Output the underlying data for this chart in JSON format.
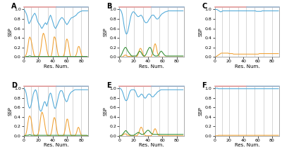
{
  "n_residues": 90,
  "x_ticks": [
    0,
    20,
    40,
    60,
    80
  ],
  "x_label": "Res. Num.",
  "y_label": "SSP",
  "y_ticks": [
    0.0,
    0.2,
    0.4,
    0.6,
    0.8,
    1.0
  ],
  "panel_labels": [
    "A",
    "B",
    "C",
    "D",
    "E",
    "F"
  ],
  "blue_color": "#4da8d8",
  "orange_color": "#f0a030",
  "green_color": "#2e8b2e",
  "background_color": "#ffffff",
  "vline_color": "#d0d0d0",
  "vline_positions": [
    10,
    20,
    33,
    44,
    56,
    68,
    80
  ],
  "header_pink": "#e8a0a0",
  "header_blue": "#a0b8d0",
  "figsize": [
    4.0,
    2.24
  ],
  "dpi": 100,
  "panel_A_blue": [
    1.0,
    0.98,
    0.95,
    0.92,
    0.88,
    0.82,
    0.75,
    0.7,
    0.72,
    0.75,
    0.78,
    0.82,
    0.85,
    0.88,
    0.9,
    0.92,
    0.9,
    0.86,
    0.8,
    0.75,
    0.72,
    0.7,
    0.68,
    0.65,
    0.62,
    0.6,
    0.62,
    0.65,
    0.68,
    0.7,
    0.72,
    0.7,
    0.68,
    0.72,
    0.76,
    0.8,
    0.85,
    0.88,
    0.85,
    0.8,
    0.75,
    0.7,
    0.65,
    0.62,
    0.6,
    0.62,
    0.65,
    0.68,
    0.72,
    0.75,
    0.78,
    0.8,
    0.82,
    0.83,
    0.82,
    0.8,
    0.78,
    0.75,
    0.72,
    0.7,
    0.68,
    0.7,
    0.72,
    0.75,
    0.78,
    0.8,
    0.82,
    0.83,
    0.83,
    0.84,
    0.85,
    0.86,
    0.87,
    0.88,
    0.9,
    0.92,
    0.93,
    0.94,
    0.95,
    0.96,
    0.96,
    0.97,
    0.97,
    0.97,
    0.97,
    0.97,
    0.97,
    0.97,
    0.97,
    0.97
  ],
  "panel_A_orange": [
    0.0,
    0.0,
    0.02,
    0.05,
    0.1,
    0.18,
    0.28,
    0.38,
    0.42,
    0.4,
    0.35,
    0.28,
    0.2,
    0.12,
    0.05,
    0.02,
    0.01,
    0.0,
    0.0,
    0.0,
    0.01,
    0.02,
    0.05,
    0.12,
    0.22,
    0.35,
    0.45,
    0.5,
    0.48,
    0.42,
    0.35,
    0.25,
    0.15,
    0.08,
    0.03,
    0.01,
    0.0,
    0.0,
    0.02,
    0.08,
    0.18,
    0.32,
    0.42,
    0.42,
    0.38,
    0.3,
    0.2,
    0.1,
    0.04,
    0.01,
    0.0,
    0.0,
    0.0,
    0.0,
    0.0,
    0.02,
    0.05,
    0.12,
    0.22,
    0.35,
    0.38,
    0.35,
    0.28,
    0.18,
    0.08,
    0.02,
    0.0,
    0.0,
    0.0,
    0.0,
    0.0,
    0.0,
    0.02,
    0.05,
    0.1,
    0.18,
    0.22,
    0.22,
    0.18,
    0.12,
    0.06,
    0.02,
    0.0,
    0.0,
    0.0,
    0.0,
    0.0,
    0.0,
    0.0,
    0.0
  ],
  "panel_A_green": [
    0.0,
    0.0,
    0.0,
    0.01,
    0.01,
    0.01,
    0.01,
    0.02,
    0.02,
    0.02,
    0.01,
    0.01,
    0.01,
    0.01,
    0.01,
    0.01,
    0.01,
    0.01,
    0.01,
    0.01,
    0.01,
    0.01,
    0.01,
    0.01,
    0.01,
    0.01,
    0.01,
    0.01,
    0.01,
    0.01,
    0.01,
    0.01,
    0.01,
    0.01,
    0.01,
    0.01,
    0.01,
    0.01,
    0.01,
    0.01,
    0.01,
    0.01,
    0.01,
    0.01,
    0.01,
    0.01,
    0.01,
    0.01,
    0.01,
    0.01,
    0.01,
    0.01,
    0.01,
    0.01,
    0.01,
    0.01,
    0.01,
    0.01,
    0.01,
    0.01,
    0.01,
    0.01,
    0.01,
    0.01,
    0.01,
    0.01,
    0.01,
    0.01,
    0.01,
    0.01,
    0.01,
    0.01,
    0.01,
    0.01,
    0.01,
    0.01,
    0.01,
    0.01,
    0.01,
    0.01,
    0.01,
    0.01,
    0.01,
    0.01,
    0.01,
    0.01,
    0.01,
    0.01,
    0.01,
    0.0
  ],
  "panel_B_blue": [
    1.0,
    1.0,
    0.98,
    0.95,
    0.9,
    0.82,
    0.72,
    0.62,
    0.55,
    0.5,
    0.48,
    0.5,
    0.55,
    0.62,
    0.7,
    0.78,
    0.85,
    0.9,
    0.93,
    0.95,
    0.95,
    0.94,
    0.92,
    0.9,
    0.88,
    0.86,
    0.85,
    0.85,
    0.86,
    0.87,
    0.88,
    0.87,
    0.85,
    0.82,
    0.78,
    0.75,
    0.73,
    0.72,
    0.72,
    0.73,
    0.75,
    0.78,
    0.8,
    0.82,
    0.85,
    0.87,
    0.88,
    0.88,
    0.88,
    0.86,
    0.84,
    0.82,
    0.8,
    0.8,
    0.8,
    0.82,
    0.84,
    0.86,
    0.88,
    0.9,
    0.91,
    0.92,
    0.93,
    0.94,
    0.95,
    0.95,
    0.96,
    0.96,
    0.97,
    0.97,
    0.97,
    0.97,
    0.97,
    0.97,
    0.97,
    0.97,
    0.97,
    0.97,
    0.97,
    0.97,
    0.97,
    0.97,
    0.97,
    0.97,
    0.97,
    0.97,
    0.97,
    0.97,
    0.97,
    0.97
  ],
  "panel_B_orange": [
    0.0,
    0.0,
    0.0,
    0.0,
    0.0,
    0.01,
    0.02,
    0.03,
    0.04,
    0.04,
    0.03,
    0.02,
    0.01,
    0.01,
    0.01,
    0.01,
    0.02,
    0.02,
    0.01,
    0.01,
    0.0,
    0.0,
    0.0,
    0.0,
    0.01,
    0.02,
    0.05,
    0.1,
    0.15,
    0.18,
    0.18,
    0.15,
    0.1,
    0.06,
    0.03,
    0.01,
    0.0,
    0.0,
    0.0,
    0.0,
    0.0,
    0.0,
    0.0,
    0.0,
    0.0,
    0.02,
    0.05,
    0.1,
    0.18,
    0.25,
    0.28,
    0.25,
    0.18,
    0.1,
    0.05,
    0.02,
    0.0,
    0.0,
    0.0,
    0.0,
    0.0,
    0.0,
    0.0,
    0.0,
    0.0,
    0.0,
    0.0,
    0.0,
    0.0,
    0.0,
    0.0,
    0.0,
    0.0,
    0.0,
    0.0,
    0.0,
    0.0,
    0.0,
    0.0,
    0.0,
    0.0,
    0.0,
    0.0,
    0.0,
    0.0,
    0.0,
    0.0,
    0.0,
    0.0,
    0.0
  ],
  "panel_B_green": [
    0.0,
    0.0,
    0.02,
    0.05,
    0.08,
    0.12,
    0.15,
    0.18,
    0.2,
    0.2,
    0.18,
    0.15,
    0.12,
    0.1,
    0.08,
    0.06,
    0.04,
    0.02,
    0.02,
    0.02,
    0.02,
    0.02,
    0.02,
    0.02,
    0.03,
    0.05,
    0.08,
    0.1,
    0.12,
    0.12,
    0.1,
    0.08,
    0.05,
    0.03,
    0.02,
    0.02,
    0.03,
    0.05,
    0.08,
    0.12,
    0.15,
    0.18,
    0.2,
    0.2,
    0.18,
    0.15,
    0.1,
    0.06,
    0.04,
    0.03,
    0.02,
    0.02,
    0.02,
    0.02,
    0.03,
    0.05,
    0.08,
    0.1,
    0.12,
    0.12,
    0.1,
    0.08,
    0.06,
    0.04,
    0.03,
    0.02,
    0.02,
    0.02,
    0.02,
    0.02,
    0.02,
    0.02,
    0.02,
    0.02,
    0.02,
    0.02,
    0.02,
    0.02,
    0.02,
    0.02,
    0.02,
    0.02,
    0.02,
    0.02,
    0.02,
    0.02,
    0.02,
    0.02,
    0.02,
    0.02
  ],
  "panel_C_blue": [
    1.0,
    1.0,
    1.0,
    1.0,
    0.99,
    0.98,
    0.97,
    0.96,
    0.95,
    0.95,
    0.96,
    0.97,
    0.97,
    0.97,
    0.97,
    0.97,
    0.97,
    0.97,
    0.97,
    0.97,
    0.97,
    0.97,
    0.97,
    0.97,
    0.97,
    0.97,
    0.97,
    0.97,
    0.97,
    0.97,
    0.97,
    0.97,
    0.97,
    0.97,
    0.97,
    0.97,
    0.97,
    0.97,
    0.97,
    0.97,
    0.97,
    0.97,
    0.97,
    0.97,
    0.97,
    0.97,
    0.97,
    0.97,
    0.97,
    0.97,
    0.97,
    0.97,
    0.97,
    0.97,
    0.97,
    0.97,
    0.97,
    0.97,
    0.96,
    0.96,
    0.96,
    0.96,
    0.96,
    0.96,
    0.96,
    0.96,
    0.97,
    0.97,
    0.97,
    0.97,
    0.97,
    0.97,
    0.97,
    0.97,
    0.97,
    0.97,
    0.97,
    0.97,
    0.97,
    0.97,
    0.97,
    0.97,
    0.97,
    0.97,
    0.97,
    0.97,
    0.97,
    0.97,
    0.97,
    0.97
  ],
  "panel_C_orange": [
    0.0,
    0.0,
    0.01,
    0.02,
    0.03,
    0.04,
    0.05,
    0.06,
    0.07,
    0.08,
    0.08,
    0.08,
    0.08,
    0.08,
    0.08,
    0.08,
    0.08,
    0.08,
    0.08,
    0.08,
    0.07,
    0.07,
    0.07,
    0.07,
    0.07,
    0.07,
    0.06,
    0.06,
    0.06,
    0.06,
    0.06,
    0.06,
    0.06,
    0.06,
    0.06,
    0.06,
    0.06,
    0.06,
    0.06,
    0.06,
    0.06,
    0.06,
    0.06,
    0.06,
    0.06,
    0.06,
    0.06,
    0.06,
    0.06,
    0.06,
    0.06,
    0.06,
    0.06,
    0.06,
    0.06,
    0.06,
    0.06,
    0.06,
    0.06,
    0.06,
    0.06,
    0.06,
    0.07,
    0.07,
    0.07,
    0.07,
    0.07,
    0.07,
    0.07,
    0.07,
    0.07,
    0.07,
    0.07,
    0.07,
    0.07,
    0.07,
    0.07,
    0.07,
    0.07,
    0.07,
    0.07,
    0.07,
    0.07,
    0.07,
    0.07,
    0.07,
    0.07,
    0.07,
    0.07,
    0.07
  ],
  "panel_C_green": [
    0.0,
    0.0,
    0.0,
    0.0,
    0.0,
    0.0,
    0.0,
    0.0,
    0.0,
    0.0,
    0.0,
    0.0,
    0.0,
    0.0,
    0.0,
    0.0,
    0.0,
    0.0,
    0.0,
    0.0,
    0.0,
    0.0,
    0.0,
    0.0,
    0.0,
    0.0,
    0.0,
    0.0,
    0.0,
    0.0,
    0.0,
    0.0,
    0.0,
    0.0,
    0.0,
    0.0,
    0.0,
    0.0,
    0.0,
    0.0,
    0.0,
    0.0,
    0.0,
    0.0,
    0.0,
    0.0,
    0.0,
    0.0,
    0.0,
    0.0,
    0.0,
    0.0,
    0.0,
    0.0,
    0.0,
    0.0,
    0.0,
    0.0,
    0.0,
    0.0,
    0.0,
    0.0,
    0.0,
    0.0,
    0.0,
    0.0,
    0.0,
    0.0,
    0.0,
    0.0,
    0.0,
    0.0,
    0.0,
    0.0,
    0.0,
    0.0,
    0.0,
    0.0,
    0.0,
    0.0,
    0.0,
    0.0,
    0.0,
    0.0,
    0.0,
    0.0,
    0.0,
    0.0,
    0.0,
    0.0
  ],
  "panel_D_blue": [
    1.0,
    0.98,
    0.95,
    0.9,
    0.82,
    0.72,
    0.65,
    0.6,
    0.58,
    0.6,
    0.65,
    0.72,
    0.8,
    0.88,
    0.92,
    0.95,
    0.97,
    0.95,
    0.9,
    0.82,
    0.72,
    0.62,
    0.55,
    0.52,
    0.52,
    0.55,
    0.6,
    0.65,
    0.7,
    0.72,
    0.7,
    0.65,
    0.62,
    0.68,
    0.75,
    0.82,
    0.88,
    0.9,
    0.88,
    0.82,
    0.75,
    0.68,
    0.62,
    0.58,
    0.58,
    0.62,
    0.68,
    0.75,
    0.82,
    0.88,
    0.92,
    0.95,
    0.95,
    0.95,
    0.92,
    0.88,
    0.82,
    0.78,
    0.75,
    0.72,
    0.72,
    0.75,
    0.8,
    0.85,
    0.88,
    0.9,
    0.92,
    0.93,
    0.94,
    0.95,
    0.96,
    0.97,
    0.97,
    0.97,
    0.97,
    0.97,
    0.97,
    0.97,
    0.97,
    0.97,
    0.97,
    0.97,
    0.97,
    0.97,
    0.97,
    0.97,
    0.97,
    0.97,
    0.97,
    0.97
  ],
  "panel_D_orange": [
    0.0,
    0.0,
    0.02,
    0.05,
    0.12,
    0.22,
    0.32,
    0.4,
    0.42,
    0.4,
    0.35,
    0.25,
    0.15,
    0.05,
    0.02,
    0.0,
    0.0,
    0.0,
    0.0,
    0.02,
    0.05,
    0.12,
    0.22,
    0.35,
    0.45,
    0.5,
    0.48,
    0.42,
    0.35,
    0.25,
    0.15,
    0.08,
    0.03,
    0.01,
    0.0,
    0.0,
    0.0,
    0.01,
    0.05,
    0.12,
    0.22,
    0.32,
    0.38,
    0.38,
    0.32,
    0.22,
    0.12,
    0.05,
    0.01,
    0.0,
    0.0,
    0.0,
    0.0,
    0.0,
    0.0,
    0.01,
    0.04,
    0.1,
    0.18,
    0.28,
    0.35,
    0.35,
    0.28,
    0.18,
    0.1,
    0.04,
    0.01,
    0.0,
    0.0,
    0.0,
    0.0,
    0.0,
    0.02,
    0.05,
    0.1,
    0.16,
    0.18,
    0.16,
    0.1,
    0.05,
    0.02,
    0.0,
    0.0,
    0.0,
    0.0,
    0.0,
    0.0,
    0.0,
    0.0,
    0.0
  ],
  "panel_D_green": [
    0.0,
    0.0,
    0.0,
    0.01,
    0.01,
    0.01,
    0.01,
    0.02,
    0.02,
    0.02,
    0.01,
    0.01,
    0.01,
    0.01,
    0.01,
    0.01,
    0.01,
    0.01,
    0.01,
    0.01,
    0.01,
    0.01,
    0.01,
    0.01,
    0.01,
    0.01,
    0.01,
    0.01,
    0.01,
    0.01,
    0.01,
    0.01,
    0.01,
    0.01,
    0.01,
    0.01,
    0.01,
    0.01,
    0.01,
    0.01,
    0.01,
    0.01,
    0.01,
    0.01,
    0.01,
    0.01,
    0.01,
    0.01,
    0.01,
    0.01,
    0.01,
    0.01,
    0.01,
    0.01,
    0.01,
    0.01,
    0.01,
    0.01,
    0.01,
    0.01,
    0.01,
    0.01,
    0.01,
    0.01,
    0.01,
    0.01,
    0.01,
    0.01,
    0.01,
    0.01,
    0.01,
    0.01,
    0.01,
    0.01,
    0.01,
    0.01,
    0.01,
    0.01,
    0.01,
    0.01,
    0.01,
    0.01,
    0.01,
    0.01,
    0.01,
    0.01,
    0.01,
    0.01,
    0.01,
    0.0
  ],
  "panel_E_blue": [
    1.0,
    1.0,
    0.99,
    0.97,
    0.94,
    0.9,
    0.85,
    0.8,
    0.76,
    0.74,
    0.74,
    0.76,
    0.8,
    0.85,
    0.9,
    0.94,
    0.96,
    0.97,
    0.97,
    0.97,
    0.97,
    0.97,
    0.95,
    0.92,
    0.88,
    0.84,
    0.82,
    0.82,
    0.83,
    0.85,
    0.87,
    0.88,
    0.87,
    0.85,
    0.82,
    0.8,
    0.79,
    0.8,
    0.82,
    0.85,
    0.87,
    0.88,
    0.88,
    0.87,
    0.85,
    0.83,
    0.82,
    0.82,
    0.83,
    0.85,
    0.87,
    0.88,
    0.9,
    0.92,
    0.93,
    0.94,
    0.95,
    0.96,
    0.97,
    0.97,
    0.97,
    0.97,
    0.97,
    0.97,
    0.97,
    0.97,
    0.97,
    0.97,
    0.97,
    0.97,
    0.97,
    0.97,
    0.97,
    0.97,
    0.97,
    0.97,
    0.97,
    0.97,
    0.97,
    0.97,
    0.97,
    0.97,
    0.97,
    0.97,
    0.97,
    0.97,
    0.97,
    0.97,
    0.97,
    0.97
  ],
  "panel_E_orange": [
    0.0,
    0.0,
    0.0,
    0.0,
    0.01,
    0.02,
    0.03,
    0.04,
    0.04,
    0.04,
    0.03,
    0.02,
    0.01,
    0.01,
    0.01,
    0.0,
    0.0,
    0.0,
    0.0,
    0.0,
    0.0,
    0.0,
    0.0,
    0.0,
    0.0,
    0.01,
    0.03,
    0.06,
    0.1,
    0.15,
    0.18,
    0.18,
    0.15,
    0.1,
    0.06,
    0.02,
    0.01,
    0.0,
    0.0,
    0.0,
    0.0,
    0.0,
    0.0,
    0.0,
    0.0,
    0.01,
    0.03,
    0.06,
    0.1,
    0.14,
    0.15,
    0.13,
    0.09,
    0.05,
    0.02,
    0.01,
    0.0,
    0.0,
    0.0,
    0.0,
    0.0,
    0.0,
    0.0,
    0.0,
    0.0,
    0.0,
    0.0,
    0.0,
    0.0,
    0.0,
    0.0,
    0.0,
    0.0,
    0.0,
    0.0,
    0.0,
    0.0,
    0.0,
    0.0,
    0.0,
    0.0,
    0.0,
    0.0,
    0.0,
    0.0,
    0.0,
    0.0,
    0.0,
    0.0,
    0.0
  ],
  "panel_E_green": [
    0.0,
    0.0,
    0.0,
    0.01,
    0.02,
    0.04,
    0.06,
    0.08,
    0.1,
    0.11,
    0.1,
    0.08,
    0.06,
    0.04,
    0.03,
    0.02,
    0.01,
    0.01,
    0.01,
    0.01,
    0.01,
    0.02,
    0.03,
    0.04,
    0.05,
    0.06,
    0.07,
    0.07,
    0.06,
    0.05,
    0.04,
    0.03,
    0.03,
    0.03,
    0.04,
    0.05,
    0.06,
    0.08,
    0.1,
    0.11,
    0.12,
    0.11,
    0.1,
    0.08,
    0.06,
    0.05,
    0.04,
    0.03,
    0.03,
    0.03,
    0.03,
    0.03,
    0.03,
    0.03,
    0.03,
    0.03,
    0.03,
    0.03,
    0.03,
    0.03,
    0.03,
    0.03,
    0.03,
    0.03,
    0.03,
    0.03,
    0.03,
    0.03,
    0.03,
    0.03,
    0.03,
    0.03,
    0.03,
    0.03,
    0.03,
    0.03,
    0.03,
    0.03,
    0.03,
    0.03,
    0.03,
    0.03,
    0.03,
    0.03,
    0.03,
    0.03,
    0.03,
    0.03,
    0.03,
    0.03
  ],
  "panel_F_blue": [
    1.0,
    1.0,
    1.0,
    1.0,
    1.0,
    0.99,
    0.99,
    0.99,
    0.99,
    0.99,
    0.99,
    0.99,
    0.99,
    0.99,
    0.99,
    0.99,
    0.99,
    0.99,
    0.99,
    0.99,
    0.99,
    0.99,
    0.99,
    0.99,
    0.99,
    0.99,
    0.99,
    0.99,
    0.99,
    0.99,
    0.99,
    0.99,
    0.99,
    0.99,
    0.99,
    0.99,
    0.99,
    0.99,
    0.99,
    0.99,
    0.99,
    0.99,
    0.99,
    0.99,
    0.99,
    0.99,
    0.99,
    0.99,
    0.99,
    0.99,
    0.99,
    0.99,
    0.99,
    0.99,
    0.99,
    0.99,
    0.99,
    0.99,
    0.99,
    0.99,
    0.99,
    0.99,
    0.99,
    0.99,
    0.99,
    0.99,
    0.99,
    0.99,
    0.99,
    0.99,
    0.99,
    0.99,
    0.99,
    0.99,
    0.99,
    0.99,
    0.99,
    0.99,
    0.99,
    0.99,
    0.99,
    0.99,
    0.99,
    0.99,
    0.99,
    0.99,
    0.99,
    0.99,
    0.99,
    0.99
  ],
  "panel_F_orange": [
    0.0,
    0.0,
    0.0,
    0.0,
    0.0,
    0.01,
    0.01,
    0.01,
    0.01,
    0.01,
    0.01,
    0.01,
    0.01,
    0.01,
    0.01,
    0.01,
    0.01,
    0.01,
    0.01,
    0.01,
    0.01,
    0.01,
    0.01,
    0.01,
    0.01,
    0.01,
    0.01,
    0.01,
    0.01,
    0.01,
    0.01,
    0.01,
    0.01,
    0.01,
    0.01,
    0.01,
    0.01,
    0.01,
    0.01,
    0.01,
    0.01,
    0.01,
    0.01,
    0.01,
    0.01,
    0.01,
    0.01,
    0.01,
    0.01,
    0.01,
    0.01,
    0.01,
    0.01,
    0.01,
    0.01,
    0.01,
    0.01,
    0.01,
    0.01,
    0.01,
    0.01,
    0.01,
    0.01,
    0.01,
    0.01,
    0.01,
    0.01,
    0.01,
    0.01,
    0.01,
    0.01,
    0.01,
    0.01,
    0.01,
    0.01,
    0.01,
    0.01,
    0.01,
    0.01,
    0.01,
    0.01,
    0.01,
    0.01,
    0.01,
    0.01,
    0.01,
    0.01,
    0.01,
    0.01,
    0.01
  ],
  "panel_F_green": [
    0.0,
    0.0,
    0.0,
    0.0,
    0.0,
    0.0,
    0.0,
    0.0,
    0.0,
    0.0,
    0.0,
    0.0,
    0.0,
    0.0,
    0.0,
    0.0,
    0.0,
    0.0,
    0.0,
    0.0,
    0.0,
    0.0,
    0.0,
    0.0,
    0.0,
    0.0,
    0.0,
    0.0,
    0.0,
    0.0,
    0.0,
    0.0,
    0.0,
    0.0,
    0.0,
    0.0,
    0.0,
    0.0,
    0.0,
    0.0,
    0.0,
    0.0,
    0.0,
    0.0,
    0.0,
    0.0,
    0.0,
    0.0,
    0.0,
    0.0,
    0.0,
    0.0,
    0.0,
    0.0,
    0.0,
    0.0,
    0.0,
    0.0,
    0.0,
    0.0,
    0.0,
    0.0,
    0.0,
    0.0,
    0.0,
    0.0,
    0.0,
    0.0,
    0.0,
    0.0,
    0.0,
    0.0,
    0.0,
    0.0,
    0.0,
    0.0,
    0.0,
    0.0,
    0.0,
    0.0,
    0.0,
    0.0,
    0.0,
    0.0,
    0.0,
    0.0,
    0.0,
    0.0,
    0.0,
    0.0
  ]
}
